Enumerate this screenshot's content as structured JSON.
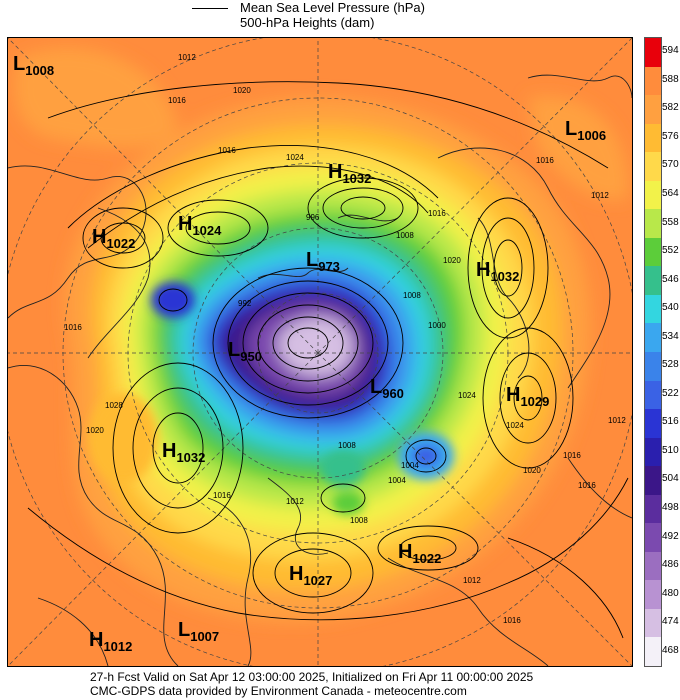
{
  "legend": {
    "line1": "Mean Sea Level Pressure (hPa)",
    "line2": "500-hPa Heights (dam)"
  },
  "colorbar": {
    "ticks": [
      "594",
      "588",
      "582",
      "576",
      "570",
      "564",
      "558",
      "552",
      "546",
      "540",
      "534",
      "528",
      "522",
      "516",
      "510",
      "504",
      "498",
      "492",
      "486",
      "480",
      "474",
      "468"
    ],
    "colors": [
      "#e8000b",
      "#ff8c3c",
      "#ffa040",
      "#ffbb33",
      "#ffd94a",
      "#f2f24a",
      "#b8e84a",
      "#5ccd3a",
      "#35c08c",
      "#33d6e0",
      "#3aa7ef",
      "#3a83ea",
      "#3a62e5",
      "#2a34d4",
      "#2a1fae",
      "#3b1688",
      "#5b2d9e",
      "#7b4aaf",
      "#9b6ec0",
      "#b892d2",
      "#d6bfe3",
      "#f4f1f8"
    ]
  },
  "pressure_centers": [
    {
      "type": "L",
      "value": "1008"
    },
    {
      "type": "L",
      "value": "1006"
    },
    {
      "type": "H",
      "value": "1032"
    },
    {
      "type": "H",
      "value": "1022"
    },
    {
      "type": "H",
      "value": "1024"
    },
    {
      "type": "L",
      "value": "973"
    },
    {
      "type": "H",
      "value": "1032"
    },
    {
      "type": "L",
      "value": "950"
    },
    {
      "type": "L",
      "value": "960"
    },
    {
      "type": "H",
      "value": "1029"
    },
    {
      "type": "H",
      "value": "1032"
    },
    {
      "type": "H",
      "value": "1022"
    },
    {
      "type": "H",
      "value": "1027"
    },
    {
      "type": "H",
      "value": "1012"
    },
    {
      "type": "L",
      "value": "1007"
    }
  ],
  "isobar_labels": [
    "1012",
    "1016",
    "1020",
    "1016",
    "1024",
    "996",
    "1008",
    "1016",
    "1020",
    "1024",
    "1008",
    "1000",
    "1004",
    "1008",
    "1012",
    "1016",
    "1020",
    "1024",
    "1028",
    "1016",
    "1012",
    "1016",
    "1008",
    "1004",
    "1020",
    "1016",
    "1012",
    "1016",
    "1012",
    "1016",
    "992"
  ],
  "footer": {
    "line1": "27-h Fcst Valid on Sat Apr 12 03:00:00 2025, Initialized on Fri Apr 11 00:00:00 2025",
    "line2": "CMC-GDPS data provided by Environment Canada - meteocentre.com"
  }
}
